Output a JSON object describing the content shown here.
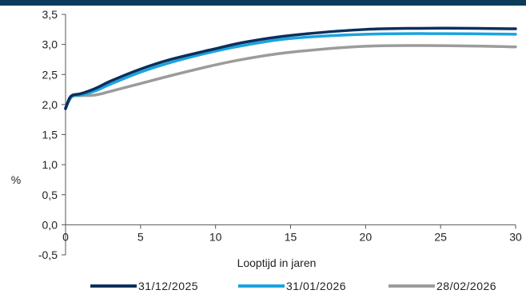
{
  "chart_data": {
    "type": "line",
    "xlabel": "Looptijd in jaren",
    "ylabel": "%",
    "xlim": [
      0,
      30
    ],
    "ylim": [
      -0.5,
      3.5
    ],
    "x_ticks": [
      0,
      5,
      10,
      15,
      20,
      25,
      30
    ],
    "y_ticks": [
      -0.5,
      0,
      0.5,
      1,
      1.5,
      2,
      2.5,
      3,
      3.5
    ],
    "x_tick_labels": [
      "0",
      "5",
      "10",
      "15",
      "20",
      "25",
      "30"
    ],
    "y_tick_labels": [
      "-0,5",
      "0,0",
      "0,5",
      "1,0",
      "1,5",
      "2,0",
      "2,5",
      "3,0",
      "3,5"
    ],
    "grid": false,
    "legend_position": "bottom",
    "series": [
      {
        "name": "31/12/2025",
        "color": "#0b2f5c",
        "x": [
          0,
          0.25,
          0.5,
          1,
          2,
          3,
          5,
          7,
          10,
          12,
          15,
          20,
          25,
          30
        ],
        "values": [
          1.93,
          2.1,
          2.16,
          2.18,
          2.27,
          2.39,
          2.59,
          2.75,
          2.93,
          3.04,
          3.15,
          3.25,
          3.27,
          3.26
        ]
      },
      {
        "name": "31/01/2026",
        "color": "#1aa3e0",
        "x": [
          0,
          0.25,
          0.5,
          1,
          2,
          3,
          5,
          7,
          10,
          12,
          15,
          20,
          25,
          30
        ],
        "values": [
          1.94,
          2.07,
          2.15,
          2.16,
          2.23,
          2.34,
          2.54,
          2.7,
          2.89,
          2.99,
          3.1,
          3.17,
          3.18,
          3.17
        ]
      },
      {
        "name": "28/02/2026",
        "color": "#9b9b9b",
        "x": [
          0,
          0.25,
          0.5,
          1,
          2,
          3,
          5,
          7,
          10,
          12,
          15,
          20,
          25,
          30
        ],
        "values": [
          1.95,
          2.08,
          2.14,
          2.15,
          2.16,
          2.22,
          2.35,
          2.48,
          2.66,
          2.76,
          2.87,
          2.97,
          2.98,
          2.96
        ]
      }
    ]
  }
}
